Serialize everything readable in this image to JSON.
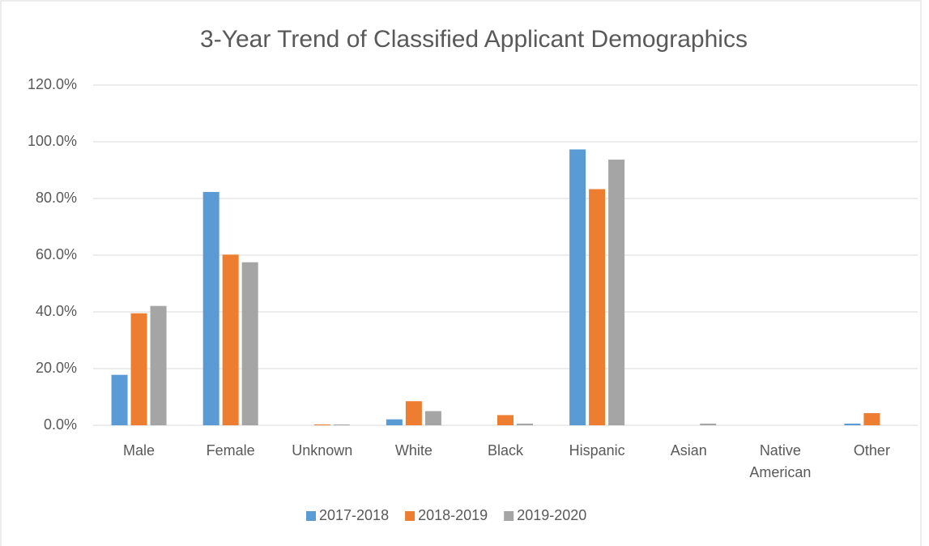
{
  "chart_data": {
    "type": "bar",
    "title": "3-Year Trend of Classified Applicant Demographics",
    "categories": [
      "Male",
      "Female",
      "Unknown",
      "White",
      "Black",
      "Hispanic",
      "Asian",
      "Native American",
      "Other"
    ],
    "series": [
      {
        "name": "2017-2018",
        "color": "#5b9bd5",
        "values": [
          17.8,
          82.3,
          0,
          2.1,
          0,
          97.3,
          0,
          0,
          0.6
        ]
      },
      {
        "name": "2018-2019",
        "color": "#ed7d31",
        "values": [
          39.5,
          60.2,
          0.3,
          8.5,
          3.6,
          83.3,
          0,
          0,
          4.3
        ]
      },
      {
        "name": "2019-2020",
        "color": "#a5a5a5",
        "values": [
          42.1,
          57.5,
          0.3,
          5.0,
          0.6,
          93.7,
          0.6,
          0,
          0
        ]
      }
    ],
    "ylim": [
      0,
      120
    ],
    "yticks": [
      {
        "value": 0,
        "label": "0.0%"
      },
      {
        "value": 20,
        "label": "20.0%"
      },
      {
        "value": 40,
        "label": "40.0%"
      },
      {
        "value": 60,
        "label": "60.0%"
      },
      {
        "value": 80,
        "label": "80.0%"
      },
      {
        "value": 100,
        "label": "100.0%"
      },
      {
        "value": 120,
        "label": "120.0%"
      }
    ],
    "grid": true,
    "legend": "bottom"
  }
}
